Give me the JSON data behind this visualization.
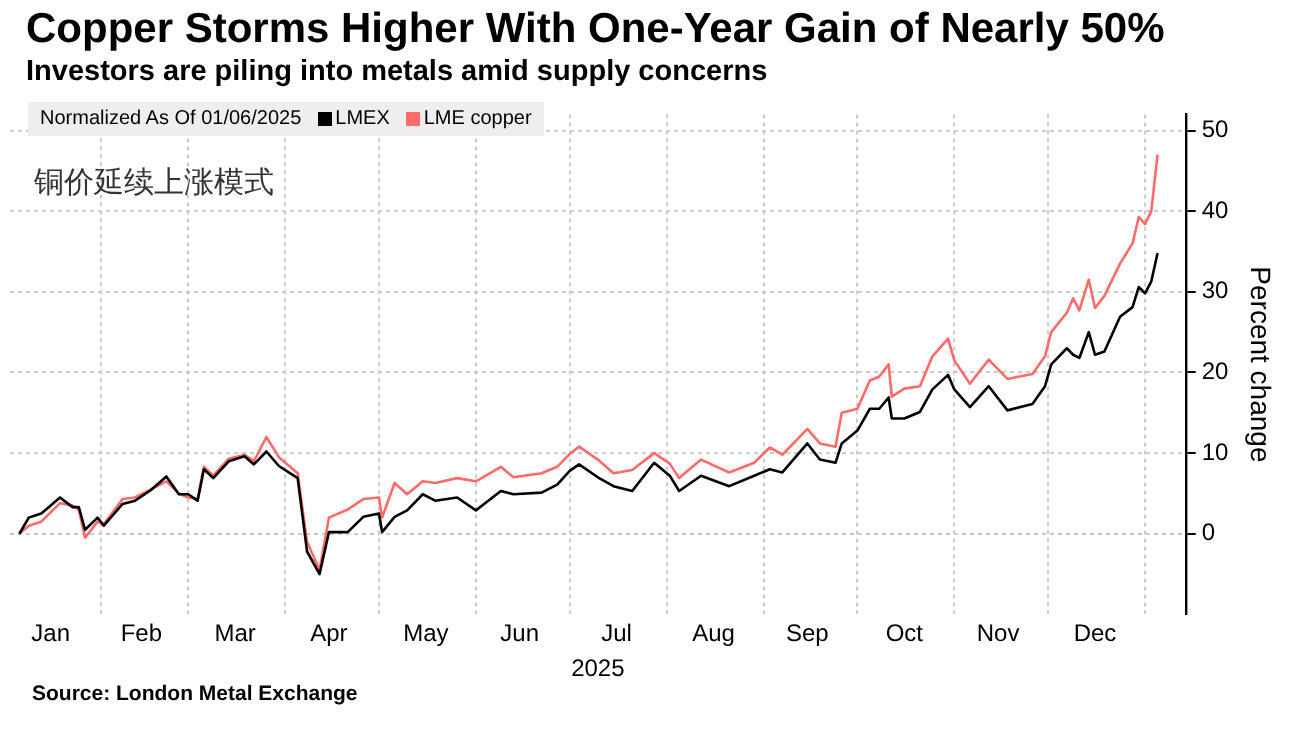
{
  "chart_data": {
    "type": "line",
    "title": "Copper Storms Higher With One-Year Gain of Nearly 50%",
    "subtitle": "Investors are piling into metals amid supply concerns",
    "xlabel": "2025",
    "ylabel": "Percent change",
    "legend_title": "Normalized As Of 01/06/2025",
    "legend": "top left",
    "grid": true,
    "marker": "none",
    "line_style": "solid",
    "annotations": [
      "铜价延续上涨模式",
      "Source: London Metal Exchange"
    ],
    "x": [
      "2025-01-06",
      "2025-01-09",
      "2025-01-13",
      "2025-01-19",
      "2025-01-23",
      "2025-01-25",
      "2025-01-27",
      "2025-01-31",
      "2025-02-02",
      "2025-02-08",
      "2025-02-12",
      "2025-02-17",
      "2025-02-22",
      "2025-02-26",
      "2025-03-01",
      "2025-03-04",
      "2025-03-06",
      "2025-03-09",
      "2025-03-14",
      "2025-03-19",
      "2025-03-22",
      "2025-03-26",
      "2025-03-30",
      "2025-04-05",
      "2025-04-08",
      "2025-04-12",
      "2025-04-15",
      "2025-04-21",
      "2025-04-26",
      "2025-05-01",
      "2025-05-02",
      "2025-05-06",
      "2025-05-10",
      "2025-05-15",
      "2025-05-19",
      "2025-05-26",
      "2025-06-01",
      "2025-06-09",
      "2025-06-13",
      "2025-06-22",
      "2025-06-27",
      "2025-07-01",
      "2025-07-04",
      "2025-07-10",
      "2025-07-15",
      "2025-07-21",
      "2025-07-28",
      "2025-08-02",
      "2025-08-05",
      "2025-08-12",
      "2025-08-21",
      "2025-08-29",
      "2025-09-03",
      "2025-09-07",
      "2025-09-15",
      "2025-09-19",
      "2025-09-24",
      "2025-09-26",
      "2025-10-01",
      "2025-10-05",
      "2025-10-08",
      "2025-10-11",
      "2025-10-12",
      "2025-10-16",
      "2025-10-21",
      "2025-10-25",
      "2025-10-30",
      "2025-11-01",
      "2025-11-06",
      "2025-11-12",
      "2025-11-18",
      "2025-11-26",
      "2025-11-30",
      "2025-12-02",
      "2025-12-07",
      "2025-12-09",
      "2025-12-11",
      "2025-12-14",
      "2025-12-16",
      "2025-12-19",
      "2025-12-24",
      "2025-12-28",
      "2025-12-30",
      "2026-01-01",
      "2026-01-03",
      "2026-01-05"
    ],
    "series": [
      {
        "name": "LMEX",
        "color": "#000000",
        "values": [
          0,
          2,
          2.5,
          4.5,
          3.3,
          3.3,
          0.5,
          2,
          1,
          3.7,
          4.1,
          5.4,
          7.1,
          4.9,
          4.9,
          4.1,
          8,
          6.9,
          9,
          9.6,
          8.6,
          10.2,
          8.4,
          6.9,
          -2.2,
          -5,
          0.2,
          0.2,
          2.1,
          2.5,
          0.2,
          2.1,
          2.9,
          4.9,
          4.1,
          4.5,
          2.9,
          5.3,
          4.9,
          5.1,
          6.1,
          7.8,
          8.6,
          7,
          5.9,
          5.3,
          8.8,
          7.2,
          5.3,
          7.2,
          5.9,
          7.2,
          8,
          7.6,
          11.2,
          9.2,
          8.8,
          11.2,
          12.8,
          15.5,
          15.5,
          16.9,
          14.3,
          14.3,
          15.1,
          17.9,
          19.7,
          17.9,
          15.7,
          18.3,
          15.3,
          16.1,
          18.3,
          21,
          23,
          22.2,
          21.8,
          25,
          22.2,
          22.6,
          26.9,
          28.1,
          30.6,
          29.8,
          31.3,
          34.8
        ]
      },
      {
        "name": "LME copper",
        "color": "#ff6b6b",
        "values": [
          0,
          1,
          1.5,
          3.8,
          3.5,
          3,
          -0.5,
          1.5,
          1.2,
          4.3,
          4.5,
          5.5,
          6.5,
          5,
          4.5,
          4.3,
          8.3,
          7.2,
          9.3,
          9.8,
          9,
          12,
          9.5,
          7.5,
          -1,
          -4.5,
          2,
          3,
          4.3,
          4.5,
          2,
          6.3,
          4.9,
          6.5,
          6.3,
          6.9,
          6.5,
          8.3,
          7,
          7.5,
          8.3,
          9.9,
          10.8,
          9.2,
          7.5,
          7.9,
          10,
          8.7,
          6.9,
          9.2,
          7.6,
          8.8,
          10.7,
          9.8,
          13,
          11.2,
          10.8,
          15,
          15.5,
          19,
          19.5,
          21,
          17,
          18,
          18.3,
          22,
          24.2,
          21.5,
          18.6,
          21.6,
          19.2,
          19.8,
          22,
          25,
          27.4,
          29.2,
          27.7,
          31.5,
          28,
          29.5,
          33.5,
          36,
          39.3,
          38.4,
          40,
          47
        ]
      }
    ],
    "xlim": [
      "2025-01-03",
      "2026-01-14"
    ],
    "xticks": [
      {
        "value": "2025-02-01",
        "label": null
      },
      {
        "value": "2025-03-01",
        "label": null
      },
      {
        "value": "2025-04-01",
        "label": null
      },
      {
        "value": "2025-05-01",
        "label": null
      },
      {
        "value": "2025-06-01",
        "label": null
      },
      {
        "value": "2025-07-01",
        "label": null
      },
      {
        "value": "2025-08-01",
        "label": null
      },
      {
        "value": "2025-09-01",
        "label": null
      },
      {
        "value": "2025-10-01",
        "label": null
      },
      {
        "value": "2025-11-01",
        "label": null
      },
      {
        "value": "2025-12-01",
        "label": null
      },
      {
        "value": "2026-01-01",
        "label": null
      },
      {
        "value": "2025-01-16",
        "label": "Jan"
      },
      {
        "value": "2025-02-14",
        "label": "Feb"
      },
      {
        "value": "2025-03-16",
        "label": "Mar"
      },
      {
        "value": "2025-04-15",
        "label": "Apr"
      },
      {
        "value": "2025-05-16",
        "label": "May"
      },
      {
        "value": "2025-06-15",
        "label": "Jun"
      },
      {
        "value": "2025-07-16",
        "label": "Jul"
      },
      {
        "value": "2025-08-16",
        "label": "Aug"
      },
      {
        "value": "2025-09-15",
        "label": "Sep"
      },
      {
        "value": "2025-10-16",
        "label": "Oct"
      },
      {
        "value": "2025-11-15",
        "label": "Nov"
      },
      {
        "value": "2025-12-16",
        "label": "Dec"
      }
    ],
    "ylim": [
      -10,
      52
    ],
    "yticks": [
      0,
      10,
      20,
      30,
      40,
      50
    ]
  }
}
